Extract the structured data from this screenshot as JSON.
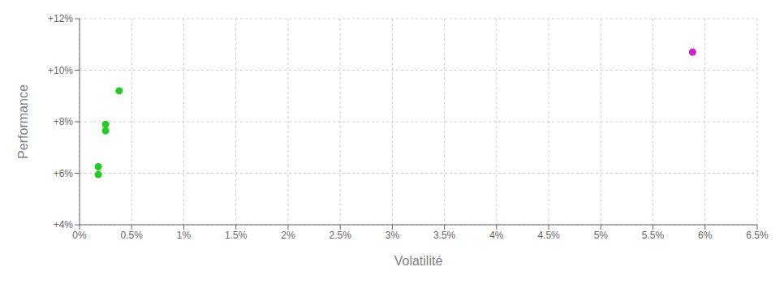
{
  "chart_data": {
    "type": "scatter",
    "xlabel": "Volatilité",
    "ylabel": "Performance",
    "xlim": [
      0,
      6.5
    ],
    "ylim": [
      4,
      12
    ],
    "xticks": [
      {
        "value": 0,
        "label": "0%"
      },
      {
        "value": 0.5,
        "label": "0.5%"
      },
      {
        "value": 1,
        "label": "1%"
      },
      {
        "value": 1.5,
        "label": "1.5%"
      },
      {
        "value": 2,
        "label": "2%"
      },
      {
        "value": 2.5,
        "label": "2.5%"
      },
      {
        "value": 3,
        "label": "3%"
      },
      {
        "value": 3.5,
        "label": "3.5%"
      },
      {
        "value": 4,
        "label": "4%"
      },
      {
        "value": 4.5,
        "label": "4.5%"
      },
      {
        "value": 5,
        "label": "5%"
      },
      {
        "value": 5.5,
        "label": "5.5%"
      },
      {
        "value": 6,
        "label": "6%"
      },
      {
        "value": 6.5,
        "label": "6.5%"
      }
    ],
    "yticks": [
      {
        "value": 4,
        "label": "+4%"
      },
      {
        "value": 6,
        "label": "+6%"
      },
      {
        "value": 8,
        "label": "+8%"
      },
      {
        "value": 10,
        "label": "+10%"
      },
      {
        "value": 12,
        "label": "+12%"
      }
    ],
    "grid": true,
    "series": [
      {
        "color": "#22cc22",
        "marker": "circle",
        "x": [
          0.38,
          0.25,
          0.25,
          0.18,
          0.18
        ],
        "values": [
          9.2,
          7.9,
          7.65,
          6.25,
          5.95
        ]
      },
      {
        "color": "#cc22cc",
        "marker": "circle",
        "x": [
          5.88
        ],
        "values": [
          10.7
        ]
      }
    ]
  }
}
